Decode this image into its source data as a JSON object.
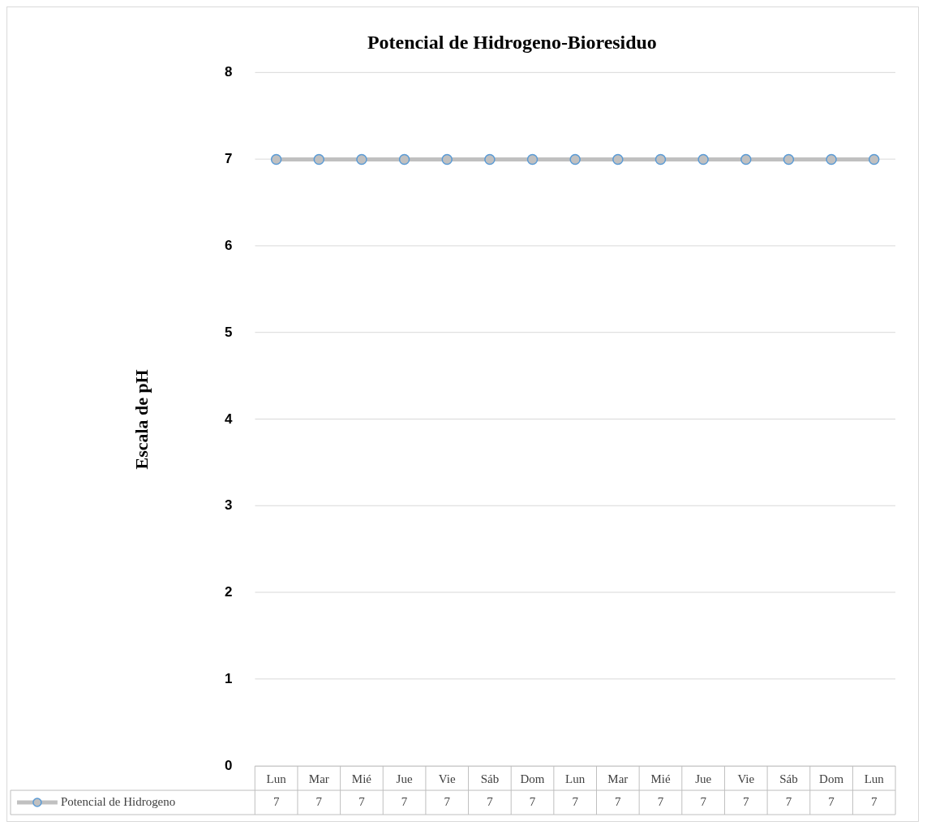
{
  "chart_data": {
    "type": "line",
    "title": "Potencial de Hidrogeno-Bioresiduo",
    "ylabel": "Escala de pH",
    "categories": [
      "Lun",
      "Mar",
      "Mié",
      "Jue",
      "Vie",
      "Sáb",
      "Dom",
      "Lun",
      "Mar",
      "Mié",
      "Jue",
      "Vie",
      "Sáb",
      "Dom",
      "Lun"
    ],
    "series": [
      {
        "name": "Potencial de Hidrogeno",
        "color": "#c0c0c0",
        "values": [
          7,
          7,
          7,
          7,
          7,
          7,
          7,
          7,
          7,
          7,
          7,
          7,
          7,
          7,
          7
        ]
      }
    ],
    "ylim": [
      0,
      8
    ],
    "yticks": [
      0,
      1,
      2,
      3,
      4,
      5,
      6,
      7,
      8
    ],
    "grid": "y",
    "legend": "bottom left",
    "marker": "circle",
    "line_style": "solid",
    "data_labels": true
  }
}
